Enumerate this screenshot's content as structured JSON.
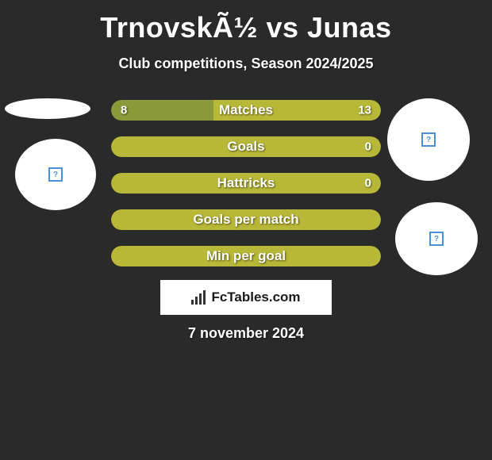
{
  "title": "TrnovskÃ½ vs Junas",
  "subtitle": "Club competitions, Season 2024/2025",
  "date": "7 november 2024",
  "attribution": "FcTables.com",
  "colors": {
    "background": "#2a2a2a",
    "bar_left": "#8a9a3a",
    "bar_right": "#b8b838",
    "bar_full": "#b8b838",
    "text": "#ffffff",
    "circle_bg": "#ffffff"
  },
  "bars": [
    {
      "label": "Matches",
      "left_value": "8",
      "right_value": "13",
      "left_pct": 38,
      "right_pct": 62,
      "show_values": true,
      "split": true
    },
    {
      "label": "Goals",
      "left_value": "",
      "right_value": "0",
      "left_pct": 0,
      "right_pct": 100,
      "show_values": true,
      "split": false
    },
    {
      "label": "Hattricks",
      "left_value": "",
      "right_value": "0",
      "left_pct": 0,
      "right_pct": 100,
      "show_values": true,
      "split": false
    },
    {
      "label": "Goals per match",
      "left_value": "",
      "right_value": "",
      "left_pct": 0,
      "right_pct": 100,
      "show_values": false,
      "split": false
    },
    {
      "label": "Min per goal",
      "left_value": "",
      "right_value": "",
      "left_pct": 0,
      "right_pct": 100,
      "show_values": false,
      "split": false
    }
  ],
  "icons": {
    "placeholder": "?"
  }
}
